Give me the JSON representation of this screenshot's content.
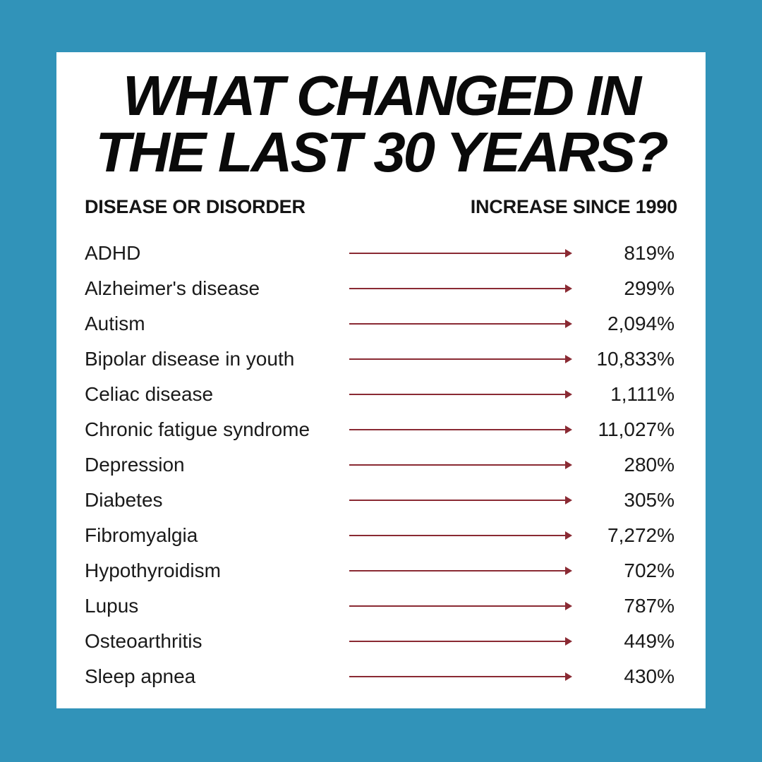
{
  "title": {
    "line1": "WHAT CHANGED IN",
    "line2": "THE LAST 30 YEARS?"
  },
  "headers": {
    "left": "DISEASE OR DISORDER",
    "right": "INCREASE SINCE 1990"
  },
  "rows": [
    {
      "label": "ADHD",
      "value": "819%"
    },
    {
      "label": "Alzheimer's disease",
      "value": "299%"
    },
    {
      "label": "Autism",
      "value": "2,094%"
    },
    {
      "label": "Bipolar disease in youth",
      "value": "10,833%"
    },
    {
      "label": "Celiac disease",
      "value": "1,111%"
    },
    {
      "label": "Chronic fatigue syndrome",
      "value": "11,027%"
    },
    {
      "label": "Depression",
      "value": "280%"
    },
    {
      "label": "Diabetes",
      "value": "305%"
    },
    {
      "label": "Fibromyalgia",
      "value": "7,272%"
    },
    {
      "label": "Hypothyroidism",
      "value": "702%"
    },
    {
      "label": "Lupus",
      "value": "787%"
    },
    {
      "label": "Osteoarthritis",
      "value": "449%"
    },
    {
      "label": "Sleep apnea",
      "value": "430%"
    }
  ],
  "colors": {
    "background": "#3193b9",
    "card": "#ffffff",
    "arrow": "#8a2a33",
    "text": "#1a1a1a"
  }
}
